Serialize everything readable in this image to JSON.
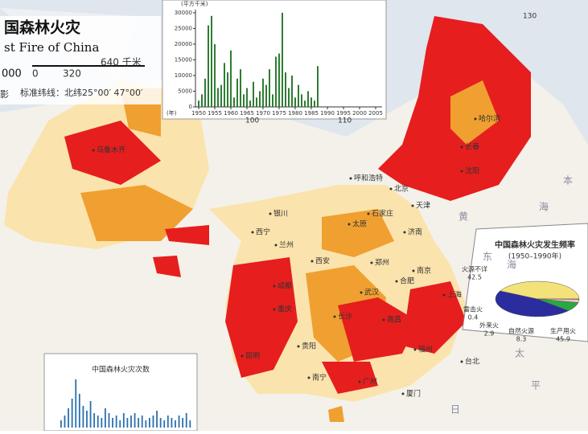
{
  "map": {
    "title_cn": "国森林火灾",
    "title_en": "st Fire of China",
    "scale_left": "000",
    "scale_ticks": [
      "0",
      "320",
      "640 千米"
    ],
    "projection_prefix": "影",
    "projection": "标准纬线：北纬25°00′  47°00′",
    "meridians": [
      "100",
      "110",
      "130"
    ],
    "cities": [
      "乌鲁木齐",
      "哈尔滨",
      "长春",
      "沈阳",
      "呼和浩特",
      "北京",
      "天津",
      "石家庄",
      "太原",
      "济南",
      "银川",
      "西宁",
      "兰州",
      "郑州",
      "西安",
      "成都",
      "重庆",
      "武汉",
      "合肥",
      "南京",
      "上海",
      "长沙",
      "南昌",
      "贵阳",
      "昆明",
      "南宁",
      "广州",
      "福州",
      "厦门",
      "台北"
    ],
    "seas": [
      "黄",
      "海",
      "东",
      "海",
      "太",
      "平",
      "本",
      "日"
    ]
  },
  "area_chart": {
    "type": "bar",
    "unit": "(平方千米)",
    "x_label": "(年)",
    "color": "#2e7d32",
    "xlim": [
      1949,
      2007
    ],
    "ylim": [
      0,
      31000
    ],
    "yticks": [
      0,
      5000,
      10000,
      15000,
      20000,
      25000,
      30000
    ],
    "xticks": [
      1950,
      1955,
      1960,
      1965,
      1970,
      1975,
      1980,
      1985,
      1990,
      1995,
      2000,
      2005
    ],
    "x": [
      1950,
      1951,
      1952,
      1953,
      1954,
      1955,
      1956,
      1957,
      1958,
      1959,
      1960,
      1961,
      1962,
      1963,
      1964,
      1965,
      1966,
      1967,
      1968,
      1969,
      1970,
      1971,
      1972,
      1973,
      1974,
      1975,
      1976,
      1977,
      1978,
      1979,
      1980,
      1981,
      1982,
      1983,
      1984,
      1985,
      1986,
      1987
    ],
    "values": [
      2000,
      4000,
      9000,
      26000,
      29000,
      20000,
      6000,
      7000,
      14000,
      11000,
      18000,
      3000,
      9000,
      12000,
      4000,
      6000,
      2000,
      8000,
      3000,
      5000,
      9000,
      7000,
      12000,
      4000,
      16000,
      17000,
      30000,
      11000,
      6000,
      10000,
      3000,
      7000,
      4000,
      2000,
      5000,
      3000,
      2000,
      13000
    ]
  },
  "pie_chart": {
    "type": "pie",
    "title": "中国森林火灾发生频率",
    "subtitle": "(1950–1990年)",
    "slices": [
      {
        "name": "火源不详",
        "value": 42.5,
        "color": "#f3e27a"
      },
      {
        "name": "雷击火",
        "value": 0.4,
        "color": "#e8a04a"
      },
      {
        "name": "外来火",
        "value": 2.9,
        "color": "#f6c1c7"
      },
      {
        "name": "自然火源",
        "value": 8.3,
        "color": "#2aa843"
      },
      {
        "name": "生产用火",
        "value": 45.9,
        "color": "#2b2d9e"
      }
    ]
  },
  "count_chart": {
    "type": "bar",
    "title": "中国森林火灾次数",
    "color": "#2a6fb0",
    "values": [
      3,
      5,
      8,
      12,
      20,
      14,
      9,
      7,
      11,
      6,
      5,
      4,
      8,
      6,
      4,
      5,
      3,
      6,
      4,
      5,
      6,
      4,
      5,
      3,
      4,
      5,
      7,
      4,
      3,
      5,
      4,
      3,
      5,
      4,
      6,
      3
    ]
  }
}
